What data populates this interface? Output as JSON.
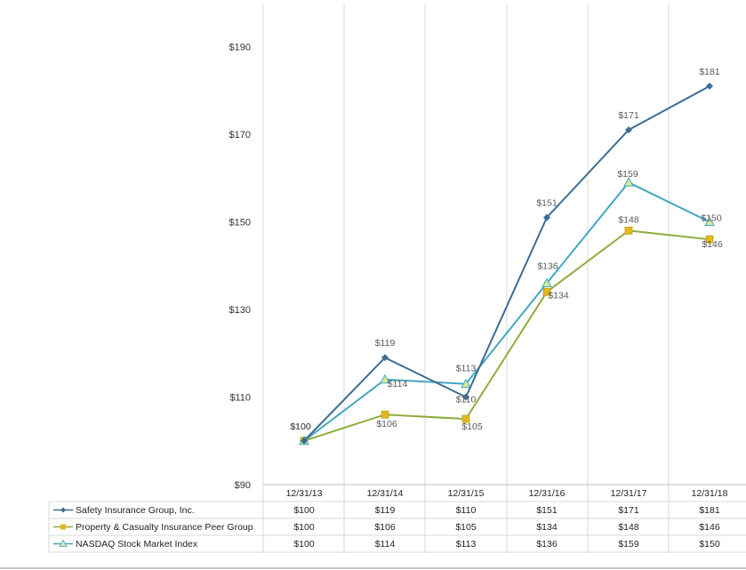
{
  "chart_data": {
    "type": "line",
    "categories": [
      "12/31/13",
      "12/31/14",
      "12/31/15",
      "12/31/16",
      "12/31/17",
      "12/31/18"
    ],
    "ylim": [
      90,
      200
    ],
    "yticks": [
      "$90",
      "$110",
      "$130",
      "$150",
      "$170",
      "$190"
    ],
    "ytick_values": [
      90,
      110,
      130,
      150,
      170,
      190
    ],
    "grid": "vertical",
    "legend": "table-bottom",
    "series": [
      {
        "name": "Safety Insurance Group, Inc.",
        "color": "#4a7ba7",
        "marker": "diamond",
        "values": [
          100,
          119,
          110,
          151,
          171,
          181
        ],
        "labels": [
          "$100",
          "$119",
          "$110",
          "$151",
          "$171",
          "$181"
        ]
      },
      {
        "name": "Property & Casualty Insurance Peer Group",
        "color": "#9bbb59",
        "marker": "square",
        "values": [
          100,
          106,
          105,
          134,
          148,
          146
        ],
        "labels": [
          "$100",
          "$106",
          "$105",
          "$134",
          "$148",
          "$146"
        ]
      },
      {
        "name": "NASDAQ Stock Market Index",
        "color": "#4bacc6",
        "marker": "triangle",
        "values": [
          100,
          114,
          113,
          136,
          159,
          150
        ],
        "labels": [
          "$100",
          "$114",
          "$113",
          "$136",
          "$159",
          "$150"
        ]
      }
    ]
  }
}
